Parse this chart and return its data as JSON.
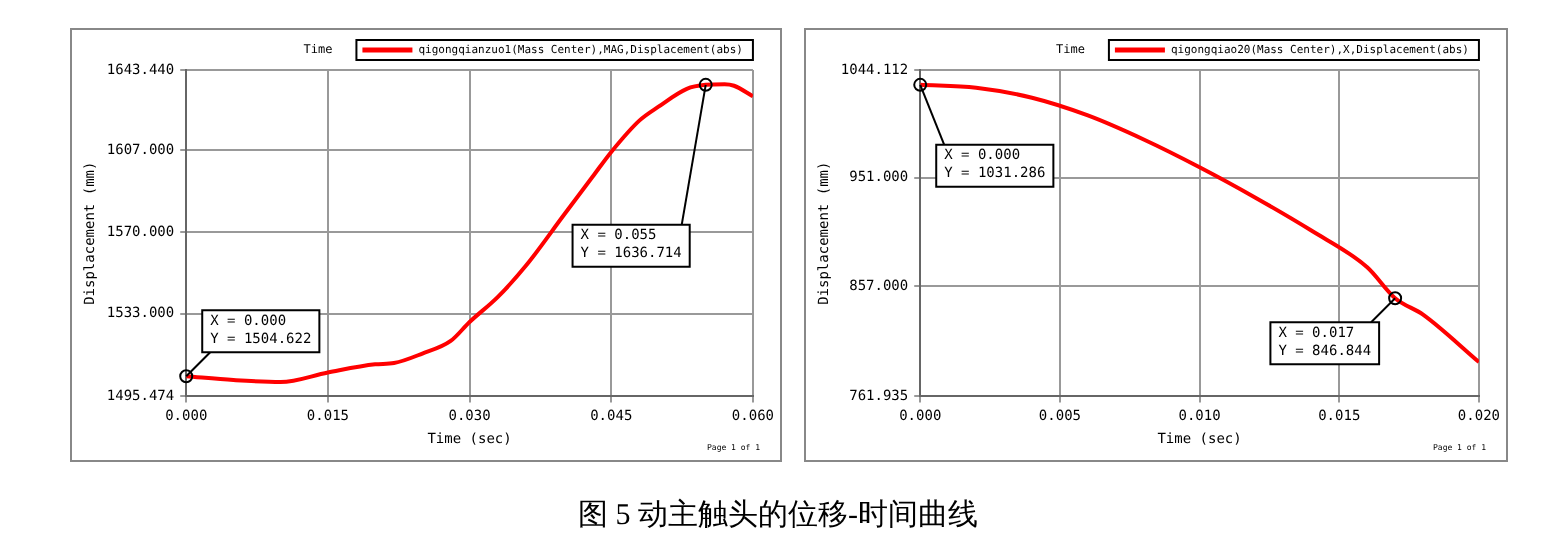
{
  "chart_data": [
    {
      "type": "line",
      "xlabel": "Time (sec)",
      "ylabel": "Displacement (mm)",
      "legend_title": "Time",
      "legend": "top right",
      "grid": true,
      "marker": "none",
      "series": [
        {
          "name": "qigongqianzuo1(Mass Center),MAG,Displacement(abs)",
          "color": "#ff0000",
          "x": [
            0,
            0.005,
            0.01,
            0.015,
            0.02,
            0.022,
            0.025,
            0.028,
            0.03,
            0.033,
            0.036,
            0.04,
            0.043,
            0.045,
            0.048,
            0.05,
            0.053,
            0.055,
            0.057,
            0.058,
            0.06
          ],
          "values": [
            1504.622,
            1502.9,
            1502.0,
            1506.3,
            1510.0,
            1510.6,
            1514.9,
            1520.6,
            1529.2,
            1540.6,
            1554.9,
            1577.8,
            1594.9,
            1606.3,
            1620.6,
            1626.8,
            1634.9,
            1636.714,
            1637.0,
            1636.3,
            1631.5
          ]
        }
      ],
      "xlim": [
        0,
        0.06
      ],
      "xticks": [
        {
          "value": 0,
          "label": "0.000"
        },
        {
          "value": 0.015,
          "label": "0.015"
        },
        {
          "value": 0.03,
          "label": "0.030"
        },
        {
          "value": 0.045,
          "label": "0.045"
        },
        {
          "value": 0.06,
          "label": "0.060"
        }
      ],
      "ylim": [
        1495.474,
        1643.44
      ],
      "yticks": [
        {
          "value": 1495.474,
          "label": "1495.474"
        },
        {
          "value": 1533,
          "label": "1533.000"
        },
        {
          "value": 1570,
          "label": "1570.000"
        },
        {
          "value": 1607,
          "label": "1607.000"
        },
        {
          "value": 1643.44,
          "label": "1643.440"
        }
      ],
      "annotations": [
        {
          "text": "X = 0.000\nY = 1504.622",
          "x": 0,
          "y": 1504.622
        },
        {
          "text": "X = 0.055\nY = 1636.714",
          "x": 0.055,
          "y": 1636.714
        },
        "Page 1 of 1"
      ]
    },
    {
      "type": "line",
      "xlabel": "Time (sec)",
      "ylabel": "Displacement (mm)",
      "legend_title": "Time",
      "legend": "top right",
      "grid": true,
      "marker": "none",
      "series": [
        {
          "name": "qigongqiao20(Mass Center),X,Displacement(abs)",
          "color": "#ff0000",
          "x": [
            0,
            0.002,
            0.004,
            0.006,
            0.008,
            0.01,
            0.012,
            0.014,
            0.016,
            0.017,
            0.018,
            0.02
          ],
          "values": [
            1031.286,
            1028.8,
            1020.1,
            1004.8,
            984.0,
            960.0,
            933.7,
            905.3,
            873.6,
            846.844,
            832.6,
            791.6
          ]
        }
      ],
      "xlim": [
        0,
        0.02
      ],
      "xticks": [
        {
          "value": 0,
          "label": "0.000"
        },
        {
          "value": 0.005,
          "label": "0.005"
        },
        {
          "value": 0.01,
          "label": "0.010"
        },
        {
          "value": 0.015,
          "label": "0.015"
        },
        {
          "value": 0.02,
          "label": "0.020"
        }
      ],
      "ylim": [
        761.935,
        1044.112
      ],
      "yticks": [
        {
          "value": 761.935,
          "label": "761.935"
        },
        {
          "value": 857,
          "label": "857.000"
        },
        {
          "value": 951,
          "label": "951.000"
        },
        {
          "value": 1044.112,
          "label": "1044.112"
        }
      ],
      "annotations": [
        {
          "text": "X = 0.000\nY = 1031.286",
          "x": 0,
          "y": 1031.286
        },
        {
          "text": "X = 0.017\nY = 846.844",
          "x": 0.017,
          "y": 846.844
        },
        "Page 1 of 1"
      ]
    },
    {
      "type": "other",
      "title": "图 5  动主触头的位移-时间曲线"
    }
  ]
}
